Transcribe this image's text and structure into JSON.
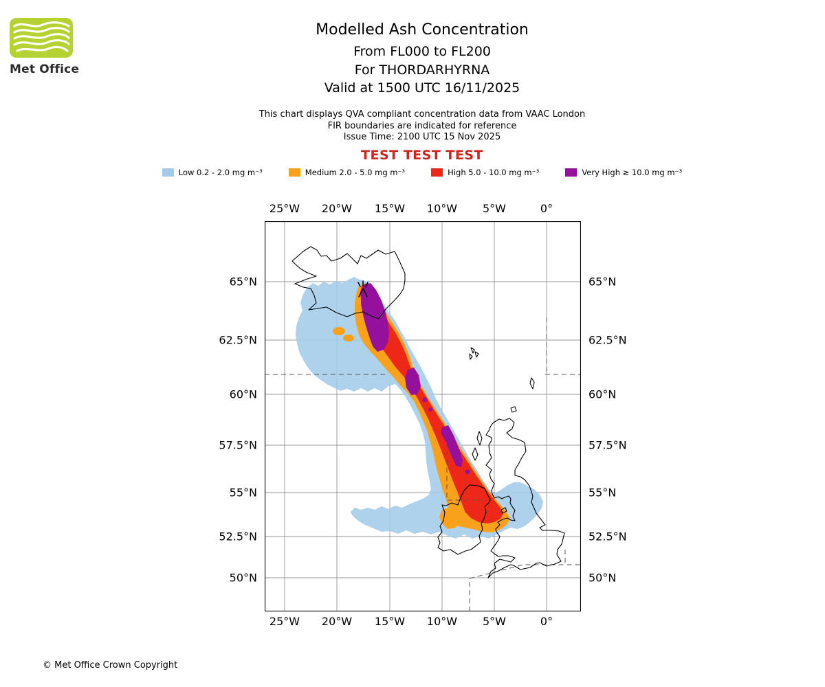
{
  "header": {
    "logo_text": "Met Office",
    "title": "Modelled Ash Concentration",
    "flight_levels": "From FL000 to FL200",
    "volcano": "For THORDARHYRNA",
    "valid": "Valid at 1500 UTC 16/11/2025",
    "note_line1": "This chart displays QVA compliant concentration data from VAAC London",
    "note_line2": "FIR boundaries are indicated for reference",
    "note_line3": "Issue Time: 2100 UTC 15 Nov 2025",
    "test_banner": "TEST TEST TEST",
    "test_banner_color": "#d02420"
  },
  "legend": {
    "items": [
      {
        "name": "low",
        "label": "Low 0.2 - 2.0 mg m⁻³",
        "color": "#a3cbe9"
      },
      {
        "name": "medium",
        "label": "Medium 2.0 - 5.0 mg m⁻³",
        "color": "#f9a11b"
      },
      {
        "name": "high",
        "label": "High 5.0 - 10.0 mg m⁻³",
        "color": "#ee2819"
      },
      {
        "name": "very-high",
        "label": "Very High ≥ 10.0 mg m⁻³",
        "color": "#95109d"
      }
    ]
  },
  "map": {
    "lon_labels": [
      "25°W",
      "20°W",
      "15°W",
      "10°W",
      "5°W",
      "0°"
    ],
    "lat_labels": [
      "65°N",
      "62.5°N",
      "60°N",
      "57.5°N",
      "55°N",
      "52.5°N",
      "50°N"
    ]
  },
  "footer": {
    "copyright": "© Met Office Crown Copyright"
  }
}
